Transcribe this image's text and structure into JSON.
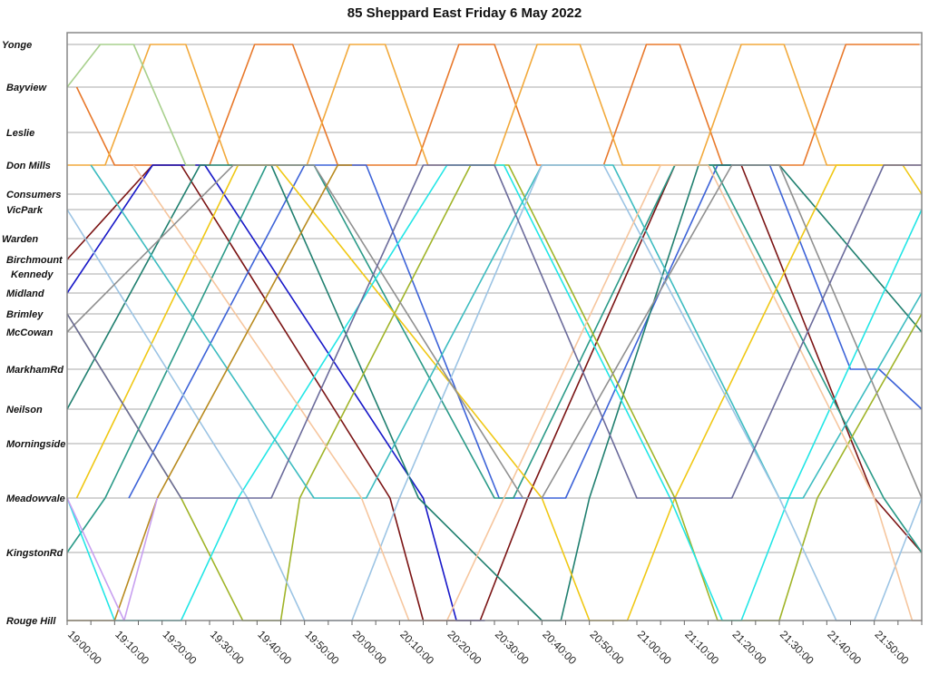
{
  "chart_data": {
    "type": "line",
    "title": "85 Sheppard East Friday 6 May 2022",
    "xlabel": "",
    "ylabel": "",
    "xlim": [
      "19:00:00",
      "22:00:00"
    ],
    "x_tick_labels": [
      "19:00:00",
      "19:10:00",
      "19:20:00",
      "19:30:00",
      "19:40:00",
      "19:50:00",
      "20:00:00",
      "20:10:00",
      "20:20:00",
      "20:30:00",
      "20:40:00",
      "20:50:00",
      "21:00:00",
      "21:10:00",
      "21:20:00",
      "21:30:00",
      "21:40:00",
      "21:50:00"
    ],
    "y_categories": [
      "Yonge",
      "Bayview",
      "Leslie",
      "Don Mills",
      "Consumers",
      "VicPark",
      "Warden",
      "Birchmount",
      "Kennedy",
      "Midland",
      "Brimley",
      "McCowan",
      "MarkhamRd",
      "Neilson",
      "Morningside",
      "Meadowvale",
      "KingstonRd",
      "Rouge Hill"
    ],
    "grid": "horizontal lines at each stop",
    "legend": "none",
    "series": [
      {
        "color": "#e8782a",
        "points": [
          [
            "19:02",
            "Bayview"
          ],
          [
            "19:10",
            "Don Mills"
          ],
          [
            "19:30",
            "Don Mills"
          ],
          [
            "19:39:30",
            "Yonge"
          ],
          [
            "19:47:30",
            "Yonge"
          ],
          [
            "19:57",
            "Don Mills"
          ],
          [
            "20:13:30",
            "Don Mills"
          ],
          [
            "20:22:30",
            "Yonge"
          ],
          [
            "20:30",
            "Yonge"
          ],
          [
            "20:39",
            "Don Mills"
          ],
          [
            "20:53",
            "Don Mills"
          ],
          [
            "21:02",
            "Yonge"
          ],
          [
            "21:09",
            "Yonge"
          ],
          [
            "21:18",
            "Don Mills"
          ],
          [
            "21:35",
            "Don Mills"
          ],
          [
            "21:44",
            "Yonge"
          ],
          [
            "21:59:30",
            "Yonge"
          ]
        ]
      },
      {
        "color": "#f2a93b",
        "points": [
          [
            "19:00",
            "Don Mills"
          ],
          [
            "19:08",
            "Don Mills"
          ],
          [
            "19:17:30",
            "Yonge"
          ],
          [
            "19:25",
            "Yonge"
          ],
          [
            "19:34",
            "Don Mills"
          ],
          [
            "19:50:30",
            "Don Mills"
          ],
          [
            "19:59:30",
            "Yonge"
          ],
          [
            "20:07",
            "Yonge"
          ],
          [
            "20:16",
            "Don Mills"
          ],
          [
            "20:30",
            "Don Mills"
          ],
          [
            "20:39",
            "Yonge"
          ],
          [
            "20:48",
            "Yonge"
          ],
          [
            "20:57",
            "Don Mills"
          ],
          [
            "21:13",
            "Don Mills"
          ],
          [
            "21:22",
            "Yonge"
          ],
          [
            "21:31",
            "Yonge"
          ],
          [
            "21:40",
            "Don Mills"
          ],
          [
            "22:00",
            "Don Mills"
          ]
        ]
      },
      {
        "color": "#7b1414",
        "points": [
          [
            "19:00",
            "Birchmount"
          ],
          [
            "19:18",
            "Don Mills"
          ],
          [
            "19:24",
            "Don Mills"
          ],
          [
            "20:08",
            "Meadowvale"
          ],
          [
            "20:15",
            "Rouge Hill"
          ],
          [
            "20:27",
            "Rouge Hill"
          ],
          [
            "20:37",
            "Meadowvale"
          ],
          [
            "21:08",
            "Don Mills"
          ],
          [
            "21:22",
            "Don Mills"
          ],
          [
            "21:50",
            "Meadowvale"
          ],
          [
            "22:00",
            "KingstonRd"
          ]
        ]
      },
      {
        "color": "#1818c8",
        "points": [
          [
            "19:00",
            "Midland"
          ],
          [
            "19:18",
            "Don Mills"
          ],
          [
            "19:29",
            "Don Mills"
          ],
          [
            "20:15",
            "Meadowvale"
          ],
          [
            "20:22",
            "Rouge Hill"
          ],
          [
            "20:28",
            "Rouge Hill"
          ]
        ]
      },
      {
        "color": "#3d63d8",
        "points": [
          [
            "19:13",
            "Meadowvale"
          ],
          [
            "19:50",
            "Don Mills"
          ],
          [
            "20:03",
            "Don Mills"
          ],
          [
            "20:31",
            "Meadowvale"
          ],
          [
            "20:45",
            "Meadowvale"
          ],
          [
            "21:17",
            "Don Mills"
          ],
          [
            "21:28",
            "Don Mills"
          ],
          [
            "21:45",
            "MarkhamRd"
          ],
          [
            "21:51",
            "MarkhamRd"
          ],
          [
            "22:00",
            "Neilson"
          ]
        ]
      },
      {
        "color": "#1f7f6f",
        "points": [
          [
            "19:00",
            "Neilson"
          ],
          [
            "19:28",
            "Don Mills"
          ],
          [
            "19:43",
            "Don Mills"
          ],
          [
            "20:14",
            "Meadowvale"
          ],
          [
            "20:40",
            "Rouge Hill"
          ],
          [
            "20:44",
            "Rouge Hill"
          ],
          [
            "20:50",
            "Meadowvale"
          ],
          [
            "21:13",
            "Don Mills"
          ],
          [
            "21:30",
            "Don Mills"
          ],
          [
            "22:00",
            "McCowan"
          ]
        ]
      },
      {
        "color": "#2a9a88",
        "points": [
          [
            "19:00",
            "KingstonRd"
          ],
          [
            "19:08",
            "Meadowvale"
          ],
          [
            "19:42",
            "Don Mills"
          ],
          [
            "19:52",
            "Don Mills"
          ],
          [
            "20:30",
            "Meadowvale"
          ],
          [
            "20:34",
            "Meadowvale"
          ],
          [
            "21:08",
            "Don Mills"
          ],
          [
            "21:16",
            "Don Mills"
          ],
          [
            "21:52",
            "Meadowvale"
          ],
          [
            "22:00",
            "KingstonRd"
          ]
        ]
      },
      {
        "color": "#f0c814",
        "points": [
          [
            "19:02",
            "Meadowvale"
          ],
          [
            "19:36",
            "Don Mills"
          ],
          [
            "19:44",
            "Don Mills"
          ],
          [
            "20:40",
            "Meadowvale"
          ],
          [
            "20:50",
            "Rouge Hill"
          ],
          [
            "20:58",
            "Rouge Hill"
          ],
          [
            "21:08",
            "Meadowvale"
          ],
          [
            "21:42",
            "Don Mills"
          ],
          [
            "21:56",
            "Don Mills"
          ],
          [
            "22:00",
            "Consumers"
          ]
        ]
      },
      {
        "color": "#a0b428",
        "points": [
          [
            "19:00",
            "Brimley"
          ],
          [
            "19:24",
            "Meadowvale"
          ],
          [
            "19:37",
            "Rouge Hill"
          ],
          [
            "19:45",
            "Rouge Hill"
          ],
          [
            "19:49",
            "Meadowvale"
          ],
          [
            "20:25",
            "Don Mills"
          ],
          [
            "20:33",
            "Don Mills"
          ],
          [
            "21:08",
            "Meadowvale"
          ],
          [
            "21:17",
            "Rouge Hill"
          ],
          [
            "21:30",
            "Rouge Hill"
          ],
          [
            "21:38",
            "Meadowvale"
          ],
          [
            "22:00",
            "Brimley"
          ]
        ]
      },
      {
        "color": "#22e6e6",
        "points": [
          [
            "19:00",
            "Meadowvale"
          ],
          [
            "19:10",
            "Rouge Hill"
          ],
          [
            "19:24",
            "Rouge Hill"
          ],
          [
            "19:36",
            "Meadowvale"
          ],
          [
            "20:20",
            "Don Mills"
          ],
          [
            "20:32",
            "Don Mills"
          ],
          [
            "21:07",
            "Meadowvale"
          ],
          [
            "21:18",
            "Rouge Hill"
          ],
          [
            "21:22",
            "Rouge Hill"
          ],
          [
            "21:32",
            "Meadowvale"
          ],
          [
            "22:00",
            "VicPark"
          ]
        ]
      },
      {
        "color": "#3cbcc0",
        "points": [
          [
            "19:05",
            "Don Mills"
          ],
          [
            "19:52",
            "Meadowvale"
          ],
          [
            "20:03",
            "Meadowvale"
          ],
          [
            "20:40",
            "Don Mills"
          ],
          [
            "20:55",
            "Don Mills"
          ],
          [
            "21:30",
            "Meadowvale"
          ],
          [
            "21:35",
            "Meadowvale"
          ],
          [
            "22:00",
            "Midland"
          ]
        ]
      },
      {
        "color": "#9cc4e4",
        "points": [
          [
            "19:00",
            "VicPark"
          ],
          [
            "19:38",
            "Meadowvale"
          ],
          [
            "19:50",
            "Rouge Hill"
          ],
          [
            "20:00",
            "Rouge Hill"
          ],
          [
            "20:10",
            "Meadowvale"
          ],
          [
            "20:40",
            "Don Mills"
          ],
          [
            "20:53",
            "Don Mills"
          ],
          [
            "21:30",
            "Meadowvale"
          ],
          [
            "21:42",
            "Rouge Hill"
          ],
          [
            "21:50",
            "Rouge Hill"
          ],
          [
            "22:00",
            "Meadowvale"
          ]
        ]
      },
      {
        "color": "#f6c69e",
        "points": [
          [
            "19:14",
            "Don Mills"
          ],
          [
            "20:02",
            "Meadowvale"
          ],
          [
            "20:12",
            "Rouge Hill"
          ],
          [
            "20:20",
            "Rouge Hill"
          ],
          [
            "20:32",
            "Meadowvale"
          ],
          [
            "21:05",
            "Don Mills"
          ],
          [
            "21:15",
            "Don Mills"
          ],
          [
            "21:50",
            "Meadowvale"
          ],
          [
            "21:58",
            "Rouge Hill"
          ],
          [
            "22:00",
            "Rouge Hill"
          ]
        ]
      },
      {
        "color": "#909090",
        "points": [
          [
            "19:00",
            "McCowan"
          ],
          [
            "19:35",
            "Don Mills"
          ],
          [
            "19:52",
            "Don Mills"
          ],
          [
            "20:36",
            "Meadowvale"
          ],
          [
            "20:40",
            "Meadowvale"
          ],
          [
            "21:20",
            "Don Mills"
          ],
          [
            "21:30",
            "Don Mills"
          ],
          [
            "22:00",
            "Meadowvale"
          ]
        ]
      },
      {
        "color": "#6b6b9b",
        "points": [
          [
            "19:00",
            "Brimley"
          ],
          [
            "19:24",
            "Meadowvale"
          ],
          [
            "19:43",
            "Meadowvale"
          ],
          [
            "20:15",
            "Don Mills"
          ],
          [
            "20:30",
            "Don Mills"
          ],
          [
            "21:00",
            "Meadowvale"
          ],
          [
            "21:20",
            "Meadowvale"
          ],
          [
            "21:52",
            "Don Mills"
          ],
          [
            "22:00",
            "Don Mills"
          ]
        ]
      },
      {
        "color": "#b88a1e",
        "points": [
          [
            "19:00",
            "Rouge Hill"
          ],
          [
            "19:10",
            "Rouge Hill"
          ],
          [
            "19:19",
            "Meadowvale"
          ],
          [
            "19:57",
            "Don Mills"
          ],
          [
            "20:00",
            "Don Mills"
          ]
        ]
      },
      {
        "color": "#c8a0f0",
        "points": [
          [
            "19:00",
            "Meadowvale"
          ],
          [
            "19:12",
            "Rouge Hill"
          ],
          [
            "19:19",
            "Meadowvale"
          ]
        ]
      },
      {
        "color": "#a8d08d",
        "points": [
          [
            "19:00",
            "Bayview"
          ],
          [
            "19:07",
            "Yonge"
          ],
          [
            "19:14",
            "Yonge"
          ],
          [
            "19:25",
            "Don Mills"
          ],
          [
            "19:27",
            "Don Mills"
          ]
        ]
      }
    ]
  }
}
